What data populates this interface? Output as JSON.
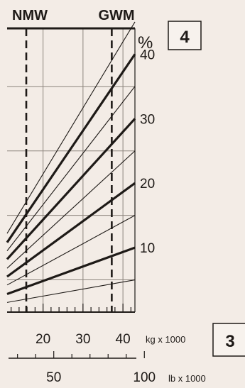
{
  "chart_data": {
    "type": "line",
    "title": "",
    "top_labels": [
      "NMW",
      "GWM"
    ],
    "section_box_top": "4",
    "section_box_bottom": "3",
    "y_unit": "%",
    "y_ticks": [
      10,
      20,
      30,
      40
    ],
    "ylim": [
      0,
      44
    ],
    "x_unit_kg": "kg x 1000",
    "x_ticks_kg": [
      20,
      30,
      40
    ],
    "xlim_kg": [
      11,
      43
    ],
    "x_unit_lb": "lb x 1000",
    "x_ticks_lb": [
      50,
      100
    ],
    "reference_lines_kg": [
      15.8,
      37.2
    ],
    "grid": true,
    "series": [
      {
        "x": [
          11,
          43
        ],
        "y": [
          1.5,
          5
        ],
        "bold": false
      },
      {
        "x": [
          11,
          43
        ],
        "y": [
          2.8,
          10
        ],
        "bold": true
      },
      {
        "x": [
          11,
          43
        ],
        "y": [
          4.2,
          15
        ],
        "bold": false
      },
      {
        "x": [
          11,
          43
        ],
        "y": [
          5.5,
          20
        ],
        "bold": true
      },
      {
        "x": [
          11,
          43
        ],
        "y": [
          6.8,
          25
        ],
        "bold": false
      },
      {
        "x": [
          11,
          43
        ],
        "y": [
          8.2,
          30
        ],
        "bold": true
      },
      {
        "x": [
          11,
          43
        ],
        "y": [
          9.5,
          35
        ],
        "bold": false
      },
      {
        "x": [
          11,
          43
        ],
        "y": [
          10.8,
          40
        ],
        "bold": true
      },
      {
        "x": [
          11,
          43
        ],
        "y": [
          12.2,
          45
        ],
        "bold": false
      }
    ]
  },
  "colors": {
    "ink": "#1e1a17",
    "grid": "#8d857e",
    "background": "#f3ece6"
  }
}
